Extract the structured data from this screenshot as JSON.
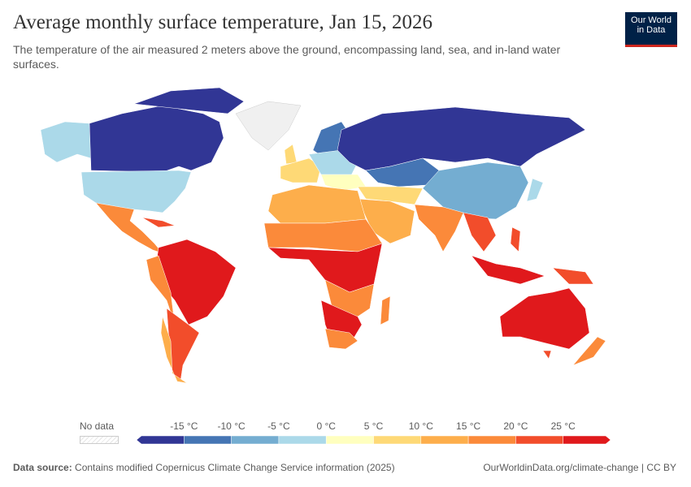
{
  "header": {
    "title": "Average monthly surface temperature, Jan 15, 2026",
    "subtitle": "The temperature of the air measured 2 meters above the ground, encompassing land, sea, and in-land water surfaces.",
    "logo": [
      "Our World",
      "in Data"
    ]
  },
  "legend": {
    "no_data": "No data",
    "ticks": [
      "-15 °C",
      "-10 °C",
      "-5 °C",
      "0 °C",
      "5 °C",
      "10 °C",
      "15 °C",
      "20 °C",
      "25 °C"
    ],
    "bin_colors": [
      "#313695",
      "#4575b4",
      "#74add1",
      "#abd9e9",
      "#ffffbf",
      "#fed976",
      "#fdae4b",
      "#fb8a3a",
      "#f24d2b",
      "#e0191c"
    ]
  },
  "footer": {
    "source_label": "Data source:",
    "source_text": "Contains modified Copernicus Climate Change Service information (2025)",
    "link": "OurWorldinData.org/climate-change | CC BY"
  }
}
